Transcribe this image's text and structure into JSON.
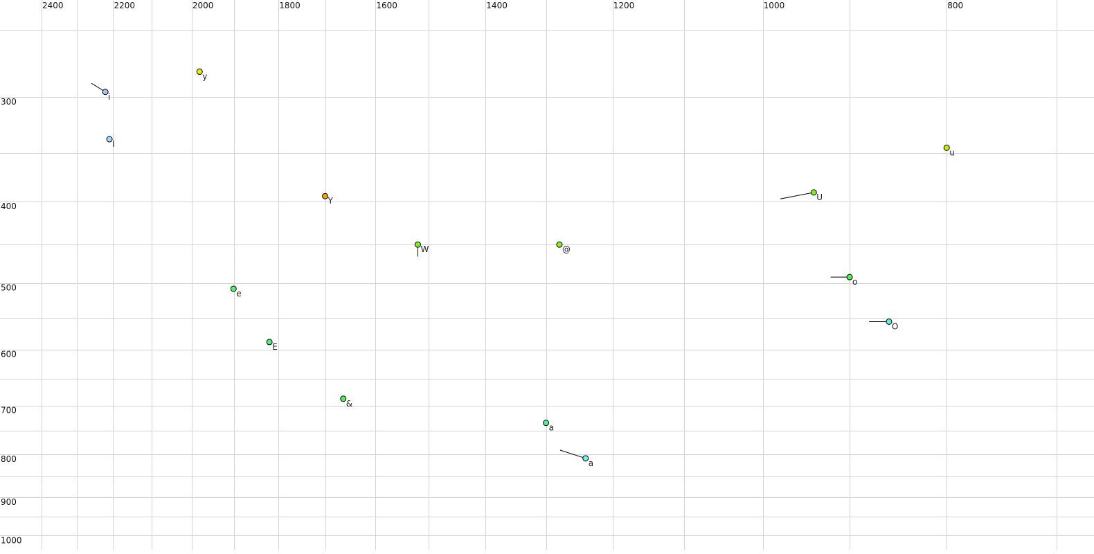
{
  "chart_data": {
    "type": "scatter",
    "title": "",
    "xlabel": "",
    "ylabel": "",
    "x_axis": {
      "scale": "log",
      "reversed": true,
      "position": "top",
      "xlim": [
        2524,
        669
      ],
      "tick_labels": [
        "2400",
        "2200",
        "2000",
        "1800",
        "1600",
        "1400",
        "1200",
        "1000",
        "800"
      ],
      "gridlines": [
        2400,
        2300,
        2200,
        2100,
        2000,
        1900,
        1800,
        1700,
        1600,
        1500,
        1400,
        1300,
        1200,
        1100,
        1000,
        900,
        800,
        700
      ]
    },
    "y_axis": {
      "scale": "log",
      "reversed": false,
      "position": "left",
      "ylim": [
        230,
        1040
      ],
      "tick_labels": [
        "300",
        "400",
        "500",
        "600",
        "700",
        "800",
        "900",
        "1000"
      ],
      "gridlines": [
        250,
        300,
        350,
        400,
        450,
        500,
        550,
        600,
        650,
        700,
        750,
        800,
        850,
        900,
        950,
        1000
      ]
    },
    "grid": true,
    "legend": "none",
    "points": [
      {
        "label": "i",
        "x": 2221,
        "y": 296,
        "from": [
          2259,
          289
        ],
        "color": "#a8bff2"
      },
      {
        "label": "I",
        "x": 2210,
        "y": 337,
        "color": "#a6d8fb"
      },
      {
        "label": "y",
        "x": 1981,
        "y": 280,
        "color": "#e2f000"
      },
      {
        "label": "Y",
        "x": 1701,
        "y": 394,
        "color": "#f0a000"
      },
      {
        "label": "W",
        "x": 1520,
        "y": 450,
        "from": [
          1520,
          465
        ],
        "color": "#7ef020"
      },
      {
        "label": "@",
        "x": 1280,
        "y": 450,
        "color": "#8cf020"
      },
      {
        "label": "e",
        "x": 1901,
        "y": 508,
        "color": "#50f070"
      },
      {
        "label": "E",
        "x": 1820,
        "y": 588,
        "color": "#50f080"
      },
      {
        "label": "&",
        "x": 1664,
        "y": 687,
        "color": "#50f060"
      },
      {
        "label": "a",
        "x": 1301,
        "y": 734,
        "color": "#50f0a0",
        "label_color": "#6a6a8a"
      },
      {
        "label": "a",
        "x": 1240,
        "y": 809,
        "from": [
          1279,
          791
        ],
        "color": "#70f0f0"
      },
      {
        "label": "U",
        "x": 940,
        "y": 390,
        "from": [
          979,
          397
        ],
        "color": "#80f020"
      },
      {
        "label": "u",
        "x": 800,
        "y": 345,
        "color": "#c4f000"
      },
      {
        "label": "o",
        "x": 900,
        "y": 492,
        "from": [
          921,
          492
        ],
        "color": "#50f050"
      },
      {
        "label": "O",
        "x": 858,
        "y": 556,
        "from": [
          879,
          556
        ],
        "color": "#60f0e0"
      }
    ]
  }
}
